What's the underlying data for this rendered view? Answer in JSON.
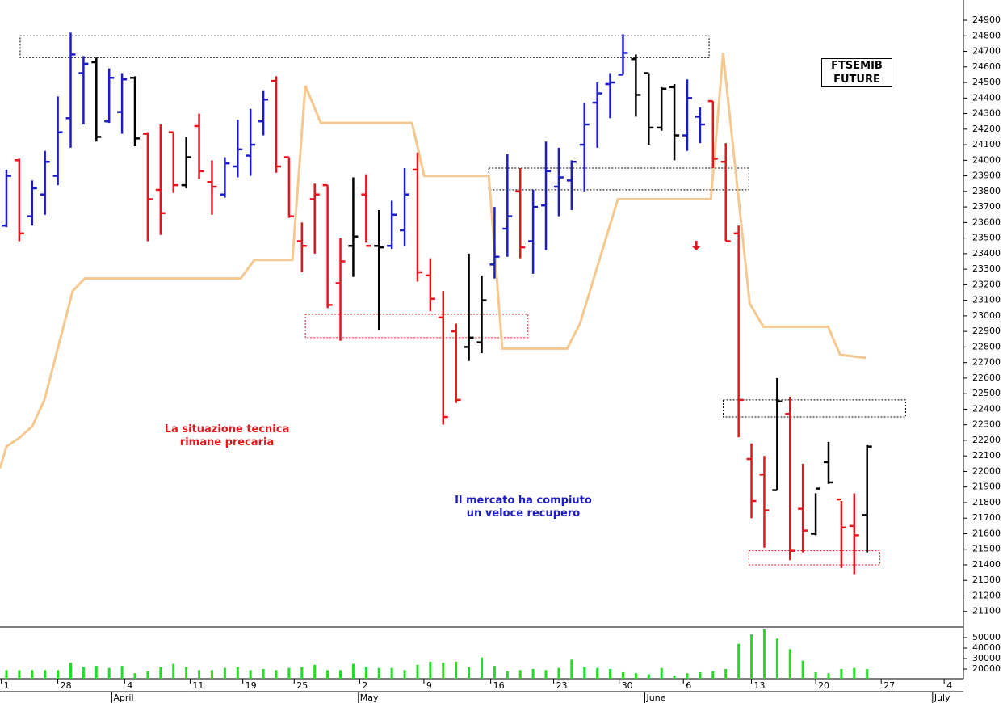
{
  "chart_data": {
    "type": "ohlc",
    "title": "FTSEMIB FUTURE",
    "annotations": [
      {
        "text": "La situazione tecnica rimane precaria",
        "color": "#e8141c"
      },
      {
        "text": "Il mercato ha compiuto un veloce recupero",
        "color": "#1c1cc8"
      }
    ],
    "open": [
      23580,
      24000,
      23640,
      23780,
      23900,
      24270,
      24560,
      24630,
      24250,
      24310,
      24530,
      24170,
      23810,
      24180,
      23840,
      24220,
      23860,
      23780,
      23960,
      24030,
      24250,
      24510,
      24020,
      23480,
      23750,
      23840,
      23210,
      23450,
      23780,
      23450,
      23450,
      23550,
      23940,
      23260,
      22990,
      22900,
      22800,
      22830,
      23330,
      23560,
      23800,
      23480,
      23710,
      23830,
      23870,
      24100,
      24370,
      24490,
      24550,
      24650,
      24560,
      24210,
      24470,
      24160,
      24280,
      24380,
      23990,
      23530,
      22080,
      21980,
      21880,
      22370,
      21760,
      21600,
      22060,
      21820,
      21650,
      21720
    ],
    "high": [
      23940,
      24010,
      23870,
      24060,
      24410,
      24820,
      24670,
      24660,
      24590,
      24560,
      24540,
      24180,
      24230,
      24180,
      24150,
      24300,
      24000,
      24020,
      24260,
      24330,
      24450,
      24540,
      24020,
      23600,
      23850,
      23840,
      23500,
      23890,
      23910,
      23680,
      23740,
      23950,
      24050,
      23370,
      23160,
      22950,
      23400,
      23260,
      23700,
      24040,
      23950,
      23810,
      24120,
      24080,
      24000,
      24370,
      24500,
      24560,
      24810,
      24680,
      24560,
      24470,
      24490,
      24520,
      24340,
      24380,
      24110,
      23580,
      22180,
      22100,
      22600,
      22480,
      22050,
      21860,
      22190,
      21810,
      21860,
      22170
    ],
    "low": [
      23570,
      23480,
      23580,
      23650,
      23840,
      24080,
      24230,
      24120,
      24240,
      24170,
      24090,
      23480,
      23520,
      23790,
      23820,
      23880,
      23650,
      23760,
      23890,
      23900,
      24160,
      23920,
      23630,
      23280,
      23400,
      23050,
      22840,
      23250,
      23470,
      22910,
      23430,
      23450,
      23220,
      23030,
      22300,
      22440,
      22710,
      22760,
      23240,
      23380,
      23370,
      23270,
      23420,
      23640,
      23680,
      23800,
      24080,
      24270,
      24550,
      24280,
      24100,
      24190,
      24000,
      24060,
      24110,
      23950,
      23480,
      22220,
      21700,
      21510,
      21880,
      21430,
      21480,
      21590,
      21920,
      21380,
      21340,
      21480
    ],
    "close": [
      23900,
      23530,
      23820,
      23990,
      24180,
      24680,
      24620,
      24150,
      24530,
      24520,
      24140,
      23750,
      23660,
      23840,
      24020,
      23930,
      23830,
      23980,
      24070,
      24100,
      24390,
      23960,
      23640,
      23450,
      23780,
      23070,
      23350,
      23510,
      23450,
      23440,
      23650,
      23780,
      23280,
      23110,
      22350,
      22460,
      22860,
      23100,
      23380,
      23640,
      23440,
      23700,
      23930,
      23890,
      23990,
      24230,
      24430,
      24500,
      24690,
      24420,
      24210,
      24460,
      24160,
      24400,
      24230,
      24010,
      23480,
      22460,
      21810,
      21750,
      22450,
      21490,
      21620,
      21890,
      21930,
      21640,
      21590,
      22160
    ],
    "bar_colors": [
      "#1c1cc8",
      "#e8141c",
      "#1c1cc8",
      "#1c1cc8",
      "#1c1cc8",
      "#1c1cc8",
      "#1c1cc8",
      "#000000",
      "#1c1cc8",
      "#1c1cc8",
      "#000000",
      "#e8141c",
      "#e8141c",
      "#e8141c",
      "#000000",
      "#e8141c",
      "#e8141c",
      "#1c1cc8",
      "#1c1cc8",
      "#1c1cc8",
      "#1c1cc8",
      "#e8141c",
      "#e8141c",
      "#e8141c",
      "#e8141c",
      "#e8141c",
      "#e8141c",
      "#000000",
      "#e8141c",
      "#000000",
      "#1c1cc8",
      "#1c1cc8",
      "#e8141c",
      "#e8141c",
      "#e8141c",
      "#e8141c",
      "#000000",
      "#000000",
      "#1c1cc8",
      "#1c1cc8",
      "#e8141c",
      "#1c1cc8",
      "#1c1cc8",
      "#1c1cc8",
      "#1c1cc8",
      "#1c1cc8",
      "#1c1cc8",
      "#1c1cc8",
      "#1c1cc8",
      "#000000",
      "#000000",
      "#000000",
      "#000000",
      "#1c1cc8",
      "#1c1cc8",
      "#e8141c",
      "#e8141c",
      "#e8141c",
      "#e8141c",
      "#e8141c",
      "#000000",
      "#e8141c",
      "#e8141c",
      "#000000",
      "#000000",
      "#e8141c",
      "#e8141c",
      "#000000"
    ],
    "volume": [
      19000,
      19000,
      19000,
      19000,
      19000,
      26000,
      22000,
      23000,
      21000,
      23000,
      16000,
      18000,
      22000,
      25000,
      22000,
      19000,
      19000,
      21000,
      22000,
      19000,
      20000,
      19000,
      21000,
      22000,
      24000,
      19000,
      19000,
      25000,
      22000,
      21000,
      21000,
      19000,
      24000,
      27000,
      26000,
      27000,
      22000,
      31000,
      23000,
      18000,
      19000,
      20000,
      19000,
      21000,
      29000,
      22000,
      21000,
      20000,
      17000,
      16000,
      15000,
      21000,
      14000,
      16000,
      17000,
      18000,
      20000,
      44000,
      53000,
      58000,
      49000,
      39000,
      28000,
      17000,
      16000,
      20000,
      21000,
      20000
    ],
    "volume_color": "#22dd22",
    "band": {
      "color": "#f5c890",
      "x": [
        -0.5,
        0,
        1.07,
        2.01,
        2.96,
        3.9,
        5.16,
        6.1,
        18.24,
        19.3,
        22.26,
        23.27,
        24.47,
        31.57,
        32.52,
        37.55,
        38.6,
        43.65,
        44.65,
        47.6,
        54.84,
        55.79,
        57.86,
        58.93,
        63.96,
        64.9,
        66.9
      ],
      "values": [
        22020,
        22160,
        22220,
        22290,
        22460,
        22760,
        23160,
        23240,
        23240,
        23360,
        23360,
        24480,
        24240,
        24240,
        23900,
        23900,
        22790,
        22790,
        22950,
        23750,
        23750,
        24690,
        23080,
        22930,
        22930,
        22750,
        22730
      ]
    },
    "zones": [
      {
        "x1": 1.07,
        "x2": 54.7,
        "y1": 24800,
        "y2": 24660,
        "color": "#000000"
      },
      {
        "x1": 37.55,
        "x2": 57.8,
        "y1": 23950,
        "y2": 23810,
        "color": "#000000"
      },
      {
        "x1": 23.27,
        "x2": 40.6,
        "y1": 23010,
        "y2": 22860,
        "color": "#e8141c"
      },
      {
        "x1": 55.8,
        "x2": 70.0,
        "y1": 22460,
        "y2": 22350,
        "color": "#000000"
      },
      {
        "x1": 57.8,
        "x2": 68.0,
        "y1": 21490,
        "y2": 21400,
        "color": "#e8141c"
      }
    ],
    "arrow": {
      "x": 53.7,
      "y": 23420,
      "color": "#e8141c"
    },
    "xlim": [
      -0.5,
      74.5
    ],
    "xticks": [
      {
        "value": -0.4,
        "label": "1"
      },
      {
        "value": 4.0,
        "label": "28"
      },
      {
        "value": 9.2,
        "label": "4"
      },
      {
        "value": 14.3,
        "label": "11"
      },
      {
        "value": 18.4,
        "label": "19"
      },
      {
        "value": 22.4,
        "label": "25"
      },
      {
        "value": 27.5,
        "label": "2"
      },
      {
        "value": 32.5,
        "label": "9"
      },
      {
        "value": 37.7,
        "label": "16"
      },
      {
        "value": 42.6,
        "label": "23"
      },
      {
        "value": 47.7,
        "label": "30"
      },
      {
        "value": 52.7,
        "label": "6"
      },
      {
        "value": 58.0,
        "label": "13"
      },
      {
        "value": 63.0,
        "label": "20"
      },
      {
        "value": 68.1,
        "label": "27"
      },
      {
        "value": 73.0,
        "label": "4"
      }
    ],
    "month_ticks": [
      {
        "value": 8.2,
        "label": "April"
      },
      {
        "value": 27.4,
        "label": "May"
      },
      {
        "value": 49.7,
        "label": "June"
      },
      {
        "value": 72.1,
        "label": "July"
      }
    ],
    "ylim": [
      21000,
      25030
    ],
    "yticks": [
      21100,
      21200,
      21300,
      21400,
      21500,
      21600,
      21700,
      21800,
      21900,
      22000,
      22100,
      22200,
      22300,
      22400,
      22500,
      22600,
      22700,
      22800,
      22900,
      23000,
      23100,
      23200,
      23300,
      23400,
      23500,
      23600,
      23700,
      23800,
      23900,
      24000,
      24100,
      24200,
      24300,
      24400,
      24500,
      24600,
      24700,
      24800,
      24900
    ],
    "volume_ylim": [
      10800,
      60000
    ],
    "volume_yticks": [
      20000,
      30000,
      40000,
      50000
    ]
  }
}
